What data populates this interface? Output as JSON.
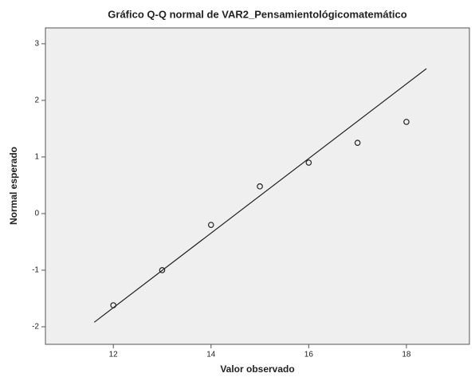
{
  "chart_data": {
    "type": "scatter",
    "title": "Gráfico Q-Q normal de VAR2_Pensamientológicomatemático",
    "x_label": "Valor observado",
    "y_label": "Normal esperado",
    "x": [
      12,
      13,
      14,
      15,
      16,
      17,
      18
    ],
    "y": [
      -1.62,
      -1.0,
      -0.2,
      0.48,
      0.9,
      1.25,
      1.62
    ],
    "color": "#222222",
    "reference_line": {
      "x": [
        11.61,
        18.41
      ],
      "y": [
        -1.92,
        2.56
      ],
      "color": "#222222"
    },
    "xlim": [
      10.61,
      19.29
    ],
    "xticks": [
      12,
      14,
      16,
      18
    ],
    "ylim": [
      -2.31,
      3.28
    ],
    "yticks": [
      -2,
      -1,
      0,
      1,
      2,
      3
    ]
  }
}
